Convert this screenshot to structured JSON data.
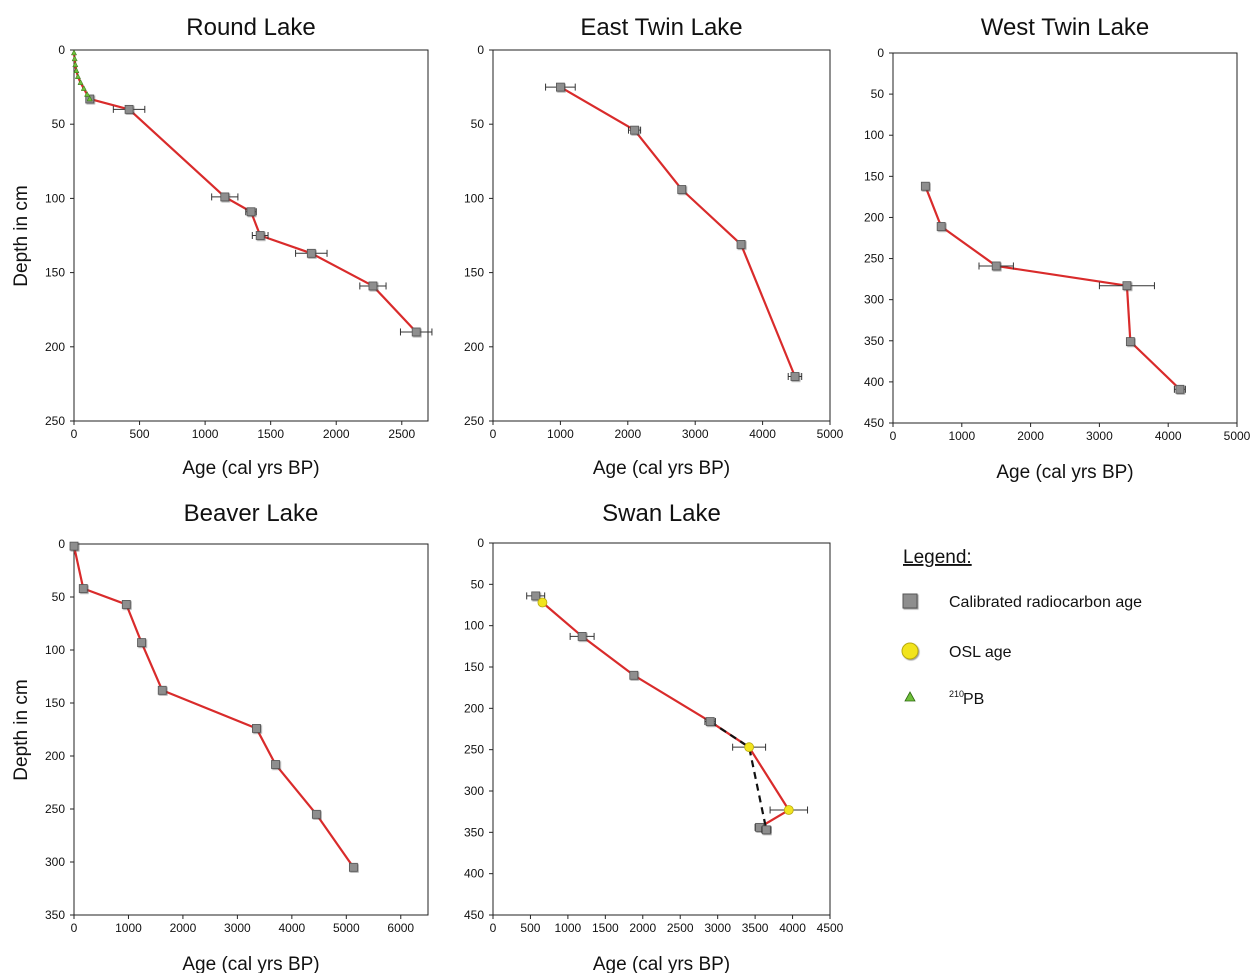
{
  "colors": {
    "line": "#d92b2b",
    "dashed_line": "#111111",
    "radiocarbon_marker": "#8e8e8e",
    "osl_marker": "#f2e41e",
    "pb210_marker": "#6fbf3a"
  },
  "legend": {
    "title": "Legend:",
    "items": [
      {
        "marker": "grey-square",
        "label": "Calibrated radiocarbon age"
      },
      {
        "marker": "yellow-circle",
        "label": "OSL age"
      },
      {
        "marker": "green-triangle",
        "label_sup": "210",
        "label": "PB"
      }
    ]
  },
  "chart_data": [
    {
      "type": "line",
      "title": "Round Lake",
      "xlabel": "Age (cal yrs BP)",
      "ylabel": "Depth in cm",
      "xlim": [
        0,
        2700
      ],
      "ylim": [
        0,
        250
      ],
      "y_inverted": true,
      "xticks": [
        0,
        500,
        1000,
        1500,
        2000,
        2500
      ],
      "yticks": [
        0,
        50,
        100,
        150,
        200,
        250
      ],
      "series": [
        {
          "marker": "square",
          "line": "red-solid",
          "points": [
            {
              "x": 120,
              "y": 33
            },
            {
              "x": 420,
              "y": 40,
              "xerr": 120
            },
            {
              "x": 1150,
              "y": 99,
              "xerr": 100
            },
            {
              "x": 1350,
              "y": 109,
              "xerr": 40
            },
            {
              "x": 1420,
              "y": 125,
              "xerr": 60
            },
            {
              "x": 1810,
              "y": 137,
              "xerr": 120
            },
            {
              "x": 2280,
              "y": 159,
              "xerr": 100
            },
            {
              "x": 2610,
              "y": 190,
              "xerr": 120
            }
          ]
        },
        {
          "marker": "triangle",
          "line": "red-solid",
          "points": [
            {
              "x": 0,
              "y": 2
            },
            {
              "x": 5,
              "y": 6
            },
            {
              "x": 10,
              "y": 10
            },
            {
              "x": 18,
              "y": 14
            },
            {
              "x": 30,
              "y": 18
            },
            {
              "x": 50,
              "y": 22
            },
            {
              "x": 75,
              "y": 26
            },
            {
              "x": 100,
              "y": 30
            },
            {
              "x": 120,
              "y": 33
            }
          ]
        }
      ]
    },
    {
      "type": "line",
      "title": "East Twin Lake",
      "xlabel": "Age (cal yrs BP)",
      "ylabel": "",
      "xlim": [
        0,
        5000
      ],
      "ylim": [
        0,
        250
      ],
      "y_inverted": true,
      "xticks": [
        0,
        1000,
        2000,
        3000,
        4000,
        5000
      ],
      "yticks": [
        0,
        50,
        100,
        150,
        200,
        250
      ],
      "series": [
        {
          "marker": "square",
          "line": "red-solid",
          "points": [
            {
              "x": 1000,
              "y": 25,
              "xerr": 220
            },
            {
              "x": 2100,
              "y": 54,
              "xerr": 90
            },
            {
              "x": 2800,
              "y": 94
            },
            {
              "x": 3680,
              "y": 131
            },
            {
              "x": 4480,
              "y": 220,
              "xerr": 100
            }
          ]
        }
      ]
    },
    {
      "type": "line",
      "title": "West Twin Lake",
      "xlabel": "Age (cal yrs BP)",
      "ylabel": "",
      "xlim": [
        0,
        5000
      ],
      "ylim": [
        0,
        450
      ],
      "y_inverted": true,
      "xticks": [
        0,
        1000,
        2000,
        3000,
        4000,
        5000
      ],
      "yticks": [
        0,
        50,
        100,
        150,
        200,
        250,
        300,
        350,
        400,
        450
      ],
      "series": [
        {
          "marker": "square",
          "line": "red-solid",
          "points": [
            {
              "x": 470,
              "y": 162
            },
            {
              "x": 700,
              "y": 211
            },
            {
              "x": 1500,
              "y": 259,
              "xerr": 250
            },
            {
              "x": 3400,
              "y": 283,
              "xerr": 400
            },
            {
              "x": 3450,
              "y": 351
            },
            {
              "x": 4170,
              "y": 409,
              "xerr": 80
            }
          ]
        }
      ]
    },
    {
      "type": "line",
      "title": "Beaver Lake",
      "xlabel": "Age (cal yrs BP)",
      "ylabel": "Depth in cm",
      "xlim": [
        0,
        6500
      ],
      "ylim": [
        0,
        350
      ],
      "y_inverted": true,
      "xticks": [
        0,
        1000,
        2000,
        3000,
        4000,
        5000,
        6000
      ],
      "yticks": [
        0,
        50,
        100,
        150,
        200,
        250,
        300,
        350
      ],
      "series": [
        {
          "marker": "square",
          "line": "red-solid",
          "points": [
            {
              "x": 0,
              "y": 2
            },
            {
              "x": 170,
              "y": 42,
              "xerr": 60
            },
            {
              "x": 960,
              "y": 57,
              "xerr": 60
            },
            {
              "x": 1240,
              "y": 93,
              "xerr": 60
            },
            {
              "x": 1620,
              "y": 138,
              "xerr": 60
            },
            {
              "x": 3350,
              "y": 174,
              "xerr": 70
            },
            {
              "x": 3700,
              "y": 208,
              "xerr": 60
            },
            {
              "x": 4450,
              "y": 255,
              "xerr": 60
            },
            {
              "x": 5130,
              "y": 305,
              "xerr": 60
            }
          ]
        }
      ]
    },
    {
      "type": "line",
      "title": "Swan Lake",
      "xlabel": "Age (cal yrs BP)",
      "ylabel": "",
      "xlim": [
        0,
        4500
      ],
      "ylim": [
        0,
        450
      ],
      "y_inverted": true,
      "xticks": [
        0,
        500,
        1000,
        1500,
        2000,
        2500,
        3000,
        3500,
        4000,
        4500
      ],
      "yticks": [
        0,
        50,
        100,
        150,
        200,
        250,
        300,
        350,
        400,
        450
      ],
      "series": [
        {
          "marker": "square",
          "line": "red-solid",
          "points": [
            {
              "x": 570,
              "y": 64,
              "xerr": 120
            },
            {
              "x": 1190,
              "y": 113,
              "xerr": 160
            },
            {
              "x": 1880,
              "y": 160
            },
            {
              "x": 2900,
              "y": 216,
              "xerr": 70
            },
            {
              "x": 3560,
              "y": 344,
              "xerr": 60
            },
            {
              "x": 3650,
              "y": 347,
              "xerr": 60
            }
          ]
        },
        {
          "marker": "circle",
          "line": "red-solid",
          "points": [
            {
              "x": 660,
              "y": 72
            },
            {
              "x": 3420,
              "y": 247,
              "xerr": 220
            },
            {
              "x": 3950,
              "y": 323,
              "xerr": 250
            }
          ]
        },
        {
          "marker": "none",
          "line": "black-dashed",
          "points": [
            {
              "x": 2900,
              "y": 216
            },
            {
              "x": 3420,
              "y": 247
            },
            {
              "x": 3650,
              "y": 347
            }
          ]
        }
      ]
    }
  ]
}
